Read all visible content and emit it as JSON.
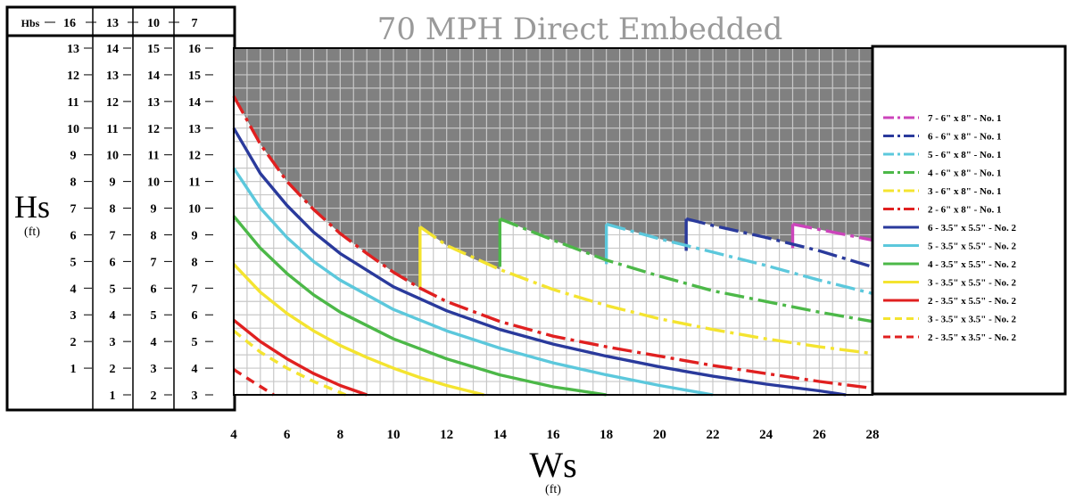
{
  "chart_data": {
    "type": "line",
    "title": "70 MPH Direct Embedded",
    "xlabel": "Ws",
    "xlabel_unit": "(ft)",
    "ylabel": "Hs",
    "ylabel_unit": "(ft)",
    "xlim": [
      4,
      28
    ],
    "ylim": [
      3,
      16
    ],
    "x_ticks": [
      4,
      6,
      8,
      10,
      12,
      14,
      16,
      18,
      20,
      22,
      24,
      26,
      28
    ],
    "grid": true,
    "legend_position": "right",
    "hbs_header": [
      "Hbs",
      "16",
      "13",
      "10",
      "7"
    ],
    "hs_scales": [
      [
        "",
        "1",
        "2",
        "3",
        "4",
        "5",
        "6",
        "7",
        "8",
        "9",
        "10",
        "11",
        "12",
        "13"
      ],
      [
        "1",
        "2",
        "3",
        "4",
        "5",
        "6",
        "7",
        "8",
        "9",
        "10",
        "11",
        "12",
        "13",
        "14"
      ],
      [
        "2",
        "3",
        "4",
        "5",
        "6",
        "7",
        "8",
        "9",
        "10",
        "11",
        "12",
        "13",
        "14",
        "15"
      ],
      [
        "3",
        "4",
        "5",
        "6",
        "7",
        "8",
        "9",
        "10",
        "11",
        "12",
        "13",
        "14",
        "15",
        "16"
      ]
    ],
    "series": [
      {
        "name": "7 - 6\" x 8\" - No. 1",
        "color": "#cc44bb",
        "dash": "dashdot",
        "points": [
          [
            25,
            9.4
          ],
          [
            28,
            8.8
          ]
        ],
        "vertical": [
          25,
          8.5,
          9.4
        ]
      },
      {
        "name": "6 - 6\" x 8\" - No. 1",
        "color": "#2a3a9c",
        "dash": "dashdot",
        "points": [
          [
            21,
            9.6
          ],
          [
            22,
            9.35
          ],
          [
            24,
            8.9
          ],
          [
            26,
            8.4
          ],
          [
            28,
            7.8
          ]
        ],
        "vertical": [
          21,
          8.4,
          9.6
        ]
      },
      {
        "name": "5 - 6\" x 8\" - No. 1",
        "color": "#5cc8dc",
        "dash": "dashdot",
        "points": [
          [
            18,
            9.4
          ],
          [
            20,
            8.85
          ],
          [
            22,
            8.35
          ],
          [
            24,
            7.85
          ],
          [
            26,
            7.3
          ],
          [
            28,
            6.8
          ]
        ],
        "vertical": [
          18,
          7.9,
          9.4
        ]
      },
      {
        "name": "4 - 6\" x 8\" - No. 1",
        "color": "#4cb848",
        "dash": "dashdot",
        "points": [
          [
            14,
            9.6
          ],
          [
            16,
            8.8
          ],
          [
            18,
            8.05
          ],
          [
            20,
            7.45
          ],
          [
            22,
            6.9
          ],
          [
            24,
            6.5
          ],
          [
            26,
            6.1
          ],
          [
            28,
            5.75
          ]
        ],
        "vertical": [
          14,
          7.8,
          9.6
        ]
      },
      {
        "name": "3 - 6\" x 8\" - No. 1",
        "color": "#f4e430",
        "dash": "dashdot",
        "points": [
          [
            11,
            9.3
          ],
          [
            12,
            8.6
          ],
          [
            14,
            7.7
          ],
          [
            16,
            6.95
          ],
          [
            18,
            6.35
          ],
          [
            20,
            5.85
          ],
          [
            22,
            5.45
          ],
          [
            24,
            5.1
          ],
          [
            26,
            4.8
          ],
          [
            28,
            4.55
          ]
        ],
        "vertical": [
          11,
          7.0,
          9.3
        ]
      },
      {
        "name": "2 - 6\" x 8\" - No. 1",
        "color": "#e02020",
        "dash": "dashdot",
        "points": [
          [
            4,
            14.2
          ],
          [
            5,
            12.4
          ],
          [
            6,
            11.0
          ],
          [
            7,
            9.95
          ],
          [
            8,
            9.05
          ],
          [
            9,
            8.3
          ],
          [
            10,
            7.6
          ],
          [
            11,
            7.0
          ],
          [
            12,
            6.5
          ],
          [
            14,
            5.75
          ],
          [
            16,
            5.2
          ],
          [
            18,
            4.8
          ],
          [
            20,
            4.45
          ],
          [
            22,
            4.1
          ],
          [
            24,
            3.8
          ],
          [
            26,
            3.5
          ],
          [
            28,
            3.25
          ]
        ]
      },
      {
        "name": "6 - 3.5\" x 5.5\" - No. 2",
        "color": "#2a3a9c",
        "dash": "solid",
        "points": [
          [
            4,
            13.0
          ],
          [
            5,
            11.3
          ],
          [
            6,
            10.1
          ],
          [
            7,
            9.1
          ],
          [
            8,
            8.3
          ],
          [
            10,
            7.05
          ],
          [
            12,
            6.15
          ],
          [
            14,
            5.45
          ],
          [
            16,
            4.9
          ],
          [
            18,
            4.45
          ],
          [
            20,
            4.05
          ],
          [
            22,
            3.7
          ],
          [
            24,
            3.4
          ],
          [
            26,
            3.15
          ],
          [
            27,
            3.0
          ]
        ]
      },
      {
        "name": "5 - 3.5\" x 5.5\" - No. 2",
        "color": "#5cc8dc",
        "dash": "solid",
        "points": [
          [
            4,
            11.5
          ],
          [
            5,
            10.0
          ],
          [
            6,
            8.9
          ],
          [
            7,
            8.0
          ],
          [
            8,
            7.3
          ],
          [
            10,
            6.2
          ],
          [
            12,
            5.4
          ],
          [
            14,
            4.75
          ],
          [
            16,
            4.2
          ],
          [
            18,
            3.75
          ],
          [
            20,
            3.35
          ],
          [
            22,
            3.0
          ]
        ]
      },
      {
        "name": "4 - 3.5\" x 5.5\" - No. 2",
        "color": "#4cb848",
        "dash": "solid",
        "points": [
          [
            4,
            9.7
          ],
          [
            5,
            8.5
          ],
          [
            6,
            7.55
          ],
          [
            7,
            6.75
          ],
          [
            8,
            6.1
          ],
          [
            10,
            5.1
          ],
          [
            12,
            4.35
          ],
          [
            14,
            3.75
          ],
          [
            16,
            3.3
          ],
          [
            18,
            3.0
          ]
        ]
      },
      {
        "name": "3 - 3.5\" x 5.5\" - No. 2",
        "color": "#f4e430",
        "dash": "solid",
        "points": [
          [
            4,
            7.9
          ],
          [
            5,
            6.85
          ],
          [
            6,
            6.05
          ],
          [
            7,
            5.4
          ],
          [
            8,
            4.85
          ],
          [
            9,
            4.4
          ],
          [
            10,
            4.0
          ],
          [
            11,
            3.65
          ],
          [
            12,
            3.35
          ],
          [
            13.4,
            3.0
          ]
        ]
      },
      {
        "name": "2 - 3.5\" x 5.5\" - No. 2",
        "color": "#e02020",
        "dash": "solid",
        "points": [
          [
            4,
            5.8
          ],
          [
            5,
            5.0
          ],
          [
            6,
            4.35
          ],
          [
            7,
            3.8
          ],
          [
            8,
            3.35
          ],
          [
            9,
            3.0
          ]
        ]
      },
      {
        "name": "3 - 3.5\" x 3.5\" - No. 2",
        "color": "#f4e430",
        "dash": "dash",
        "points": [
          [
            4,
            5.4
          ],
          [
            5,
            4.6
          ],
          [
            6,
            4.0
          ],
          [
            7,
            3.5
          ],
          [
            8.2,
            3.0
          ]
        ]
      },
      {
        "name": "2 - 3.5\" x 3.5\" - No. 2",
        "color": "#e02020",
        "dash": "dash",
        "points": [
          [
            4,
            3.95
          ],
          [
            4.7,
            3.5
          ],
          [
            5.5,
            3.0
          ]
        ]
      }
    ],
    "no_go_region_color": "#808080"
  }
}
